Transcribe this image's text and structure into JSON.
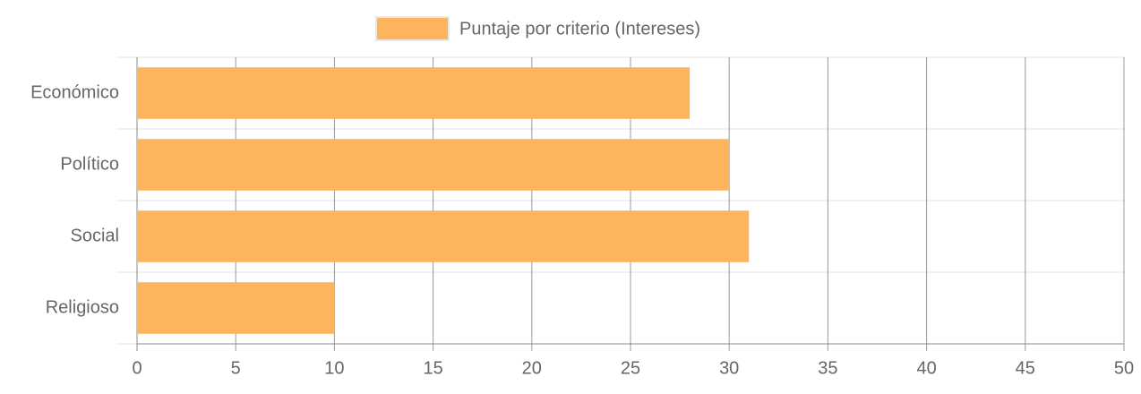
{
  "chart_data": {
    "type": "bar",
    "orientation": "horizontal",
    "categories": [
      "Económico",
      "Político",
      "Social",
      "Religioso"
    ],
    "series": [
      {
        "name": "Puntaje por criterio (Intereses)",
        "color": "#fdb45c",
        "values": [
          28,
          30,
          31,
          10
        ]
      }
    ],
    "xlim": [
      0,
      50
    ],
    "xticks": [
      0,
      5,
      10,
      15,
      20,
      25,
      30,
      35,
      40,
      45,
      50
    ],
    "grid": true,
    "legend": "top"
  }
}
